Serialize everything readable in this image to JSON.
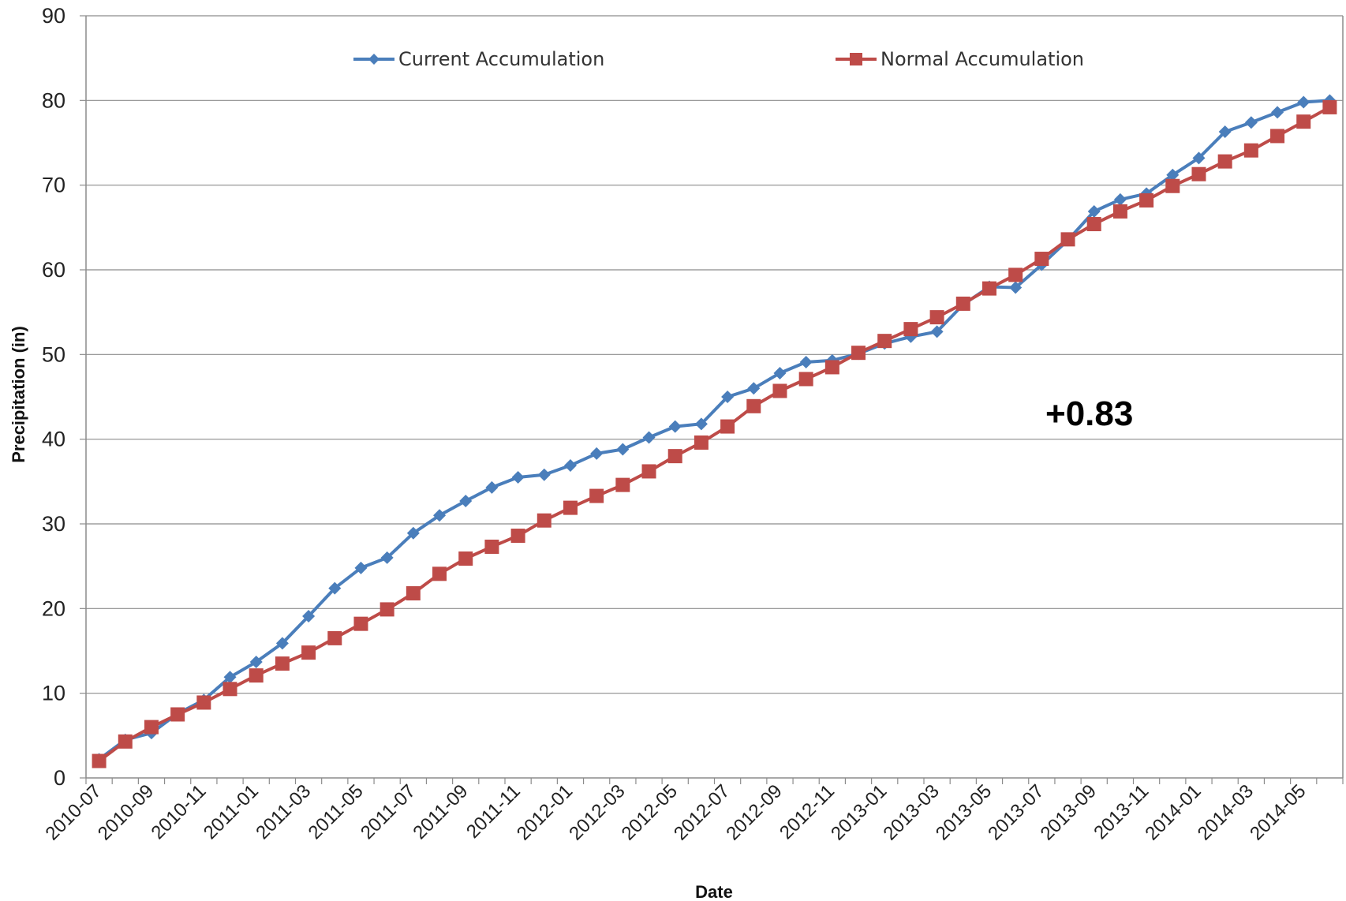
{
  "chart_data": {
    "type": "line",
    "title": "",
    "xlabel": "Date",
    "ylabel": "Precipitation (in)",
    "ylim": [
      0,
      90
    ],
    "y_ticks": [
      0,
      10,
      20,
      30,
      40,
      50,
      60,
      70,
      80,
      90
    ],
    "x_tick_labels": [
      "2010-07",
      "2010-09",
      "2010-11",
      "2011-01",
      "2011-03",
      "2011-05",
      "2011-07",
      "2011-09",
      "2011-11",
      "2012-01",
      "2012-03",
      "2012-05",
      "2012-07",
      "2012-09",
      "2012-11",
      "2013-01",
      "2013-03",
      "2013-05",
      "2013-07",
      "2013-09",
      "2013-11",
      "2014-01",
      "2014-03",
      "2014-05"
    ],
    "grid": true,
    "legend_position": "top",
    "annotation": "+0.83",
    "x": [
      "2010-07",
      "2010-08",
      "2010-09",
      "2010-10",
      "2010-11",
      "2010-12",
      "2011-01",
      "2011-02",
      "2011-03",
      "2011-04",
      "2011-05",
      "2011-06",
      "2011-07",
      "2011-08",
      "2011-09",
      "2011-10",
      "2011-11",
      "2011-12",
      "2012-01",
      "2012-02",
      "2012-03",
      "2012-04",
      "2012-05",
      "2012-06",
      "2012-07",
      "2012-08",
      "2012-09",
      "2012-10",
      "2012-11",
      "2012-12",
      "2013-01",
      "2013-02",
      "2013-03",
      "2013-04",
      "2013-05",
      "2013-06",
      "2013-07",
      "2013-08",
      "2013-09",
      "2013-10",
      "2013-11",
      "2013-12",
      "2014-01",
      "2014-02",
      "2014-03",
      "2014-04",
      "2014-05",
      "2014-06"
    ],
    "series": [
      {
        "name": "Current Accumulation",
        "color": "#4a7ebb",
        "marker": "diamond",
        "values": [
          2.2,
          4.5,
          5.3,
          7.6,
          9.2,
          11.9,
          13.7,
          15.9,
          19.1,
          22.4,
          24.8,
          26.0,
          28.9,
          31.0,
          32.7,
          34.3,
          35.5,
          35.8,
          36.9,
          38.3,
          38.8,
          40.2,
          41.5,
          41.8,
          45.0,
          46.0,
          47.8,
          49.1,
          49.3,
          50.1,
          51.3,
          52.1,
          52.7,
          55.9,
          58.0,
          57.9,
          60.6,
          63.5,
          66.9,
          68.3,
          69.0,
          71.2,
          73.2,
          76.3,
          77.4,
          78.6,
          79.8,
          80.0
        ]
      },
      {
        "name": "Normal Accumulation",
        "color": "#be4b48",
        "marker": "square",
        "values": [
          2.0,
          4.3,
          6.0,
          7.5,
          8.9,
          10.5,
          12.1,
          13.5,
          14.8,
          16.5,
          18.2,
          19.9,
          21.8,
          24.1,
          25.9,
          27.3,
          28.6,
          30.4,
          31.9,
          33.3,
          34.6,
          36.2,
          38.0,
          39.6,
          41.5,
          43.9,
          45.7,
          47.1,
          48.5,
          50.2,
          51.6,
          53.0,
          54.4,
          56.0,
          57.8,
          59.4,
          61.3,
          63.6,
          65.4,
          66.9,
          68.2,
          69.9,
          71.3,
          72.8,
          74.1,
          75.8,
          77.5,
          79.2
        ]
      }
    ]
  }
}
